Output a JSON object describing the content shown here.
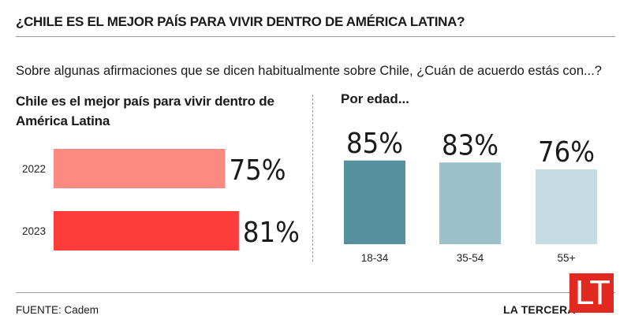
{
  "header": {
    "title": "¿CHILE ES EL MEJOR PAÍS PARA VIVIR DENTRO DE AMÉRICA LATINA?",
    "subtitle": "Sobre algunas afirmaciones que se dicen habitualmente sobre Chile,  ¿Cuán de acuerdo estás con...?"
  },
  "chart_data": [
    {
      "type": "bar",
      "orientation": "horizontal",
      "title": "Chile es el mejor país para vivir dentro de América Latina",
      "categories": [
        "2022",
        "2023"
      ],
      "values": [
        75,
        81
      ],
      "labels": [
        "75%",
        "81%"
      ],
      "colors": [
        "#fc8a80",
        "#fc3b3b"
      ],
      "xlim": [
        0,
        100
      ]
    },
    {
      "type": "bar",
      "orientation": "vertical",
      "title": "Por edad...",
      "categories": [
        "18-34",
        "35-54",
        "55+"
      ],
      "values": [
        85,
        83,
        76
      ],
      "labels": [
        "85%",
        "83%",
        "76%"
      ],
      "colors": [
        "#55909c",
        "#9dc0cb",
        "#c6dce3"
      ],
      "ylim": [
        0,
        100
      ]
    }
  ],
  "footer": {
    "source": "FUENTE: Cadem",
    "brand": "LA TERCERA",
    "logo_text": "LT",
    "logo_color": "#e22920"
  }
}
